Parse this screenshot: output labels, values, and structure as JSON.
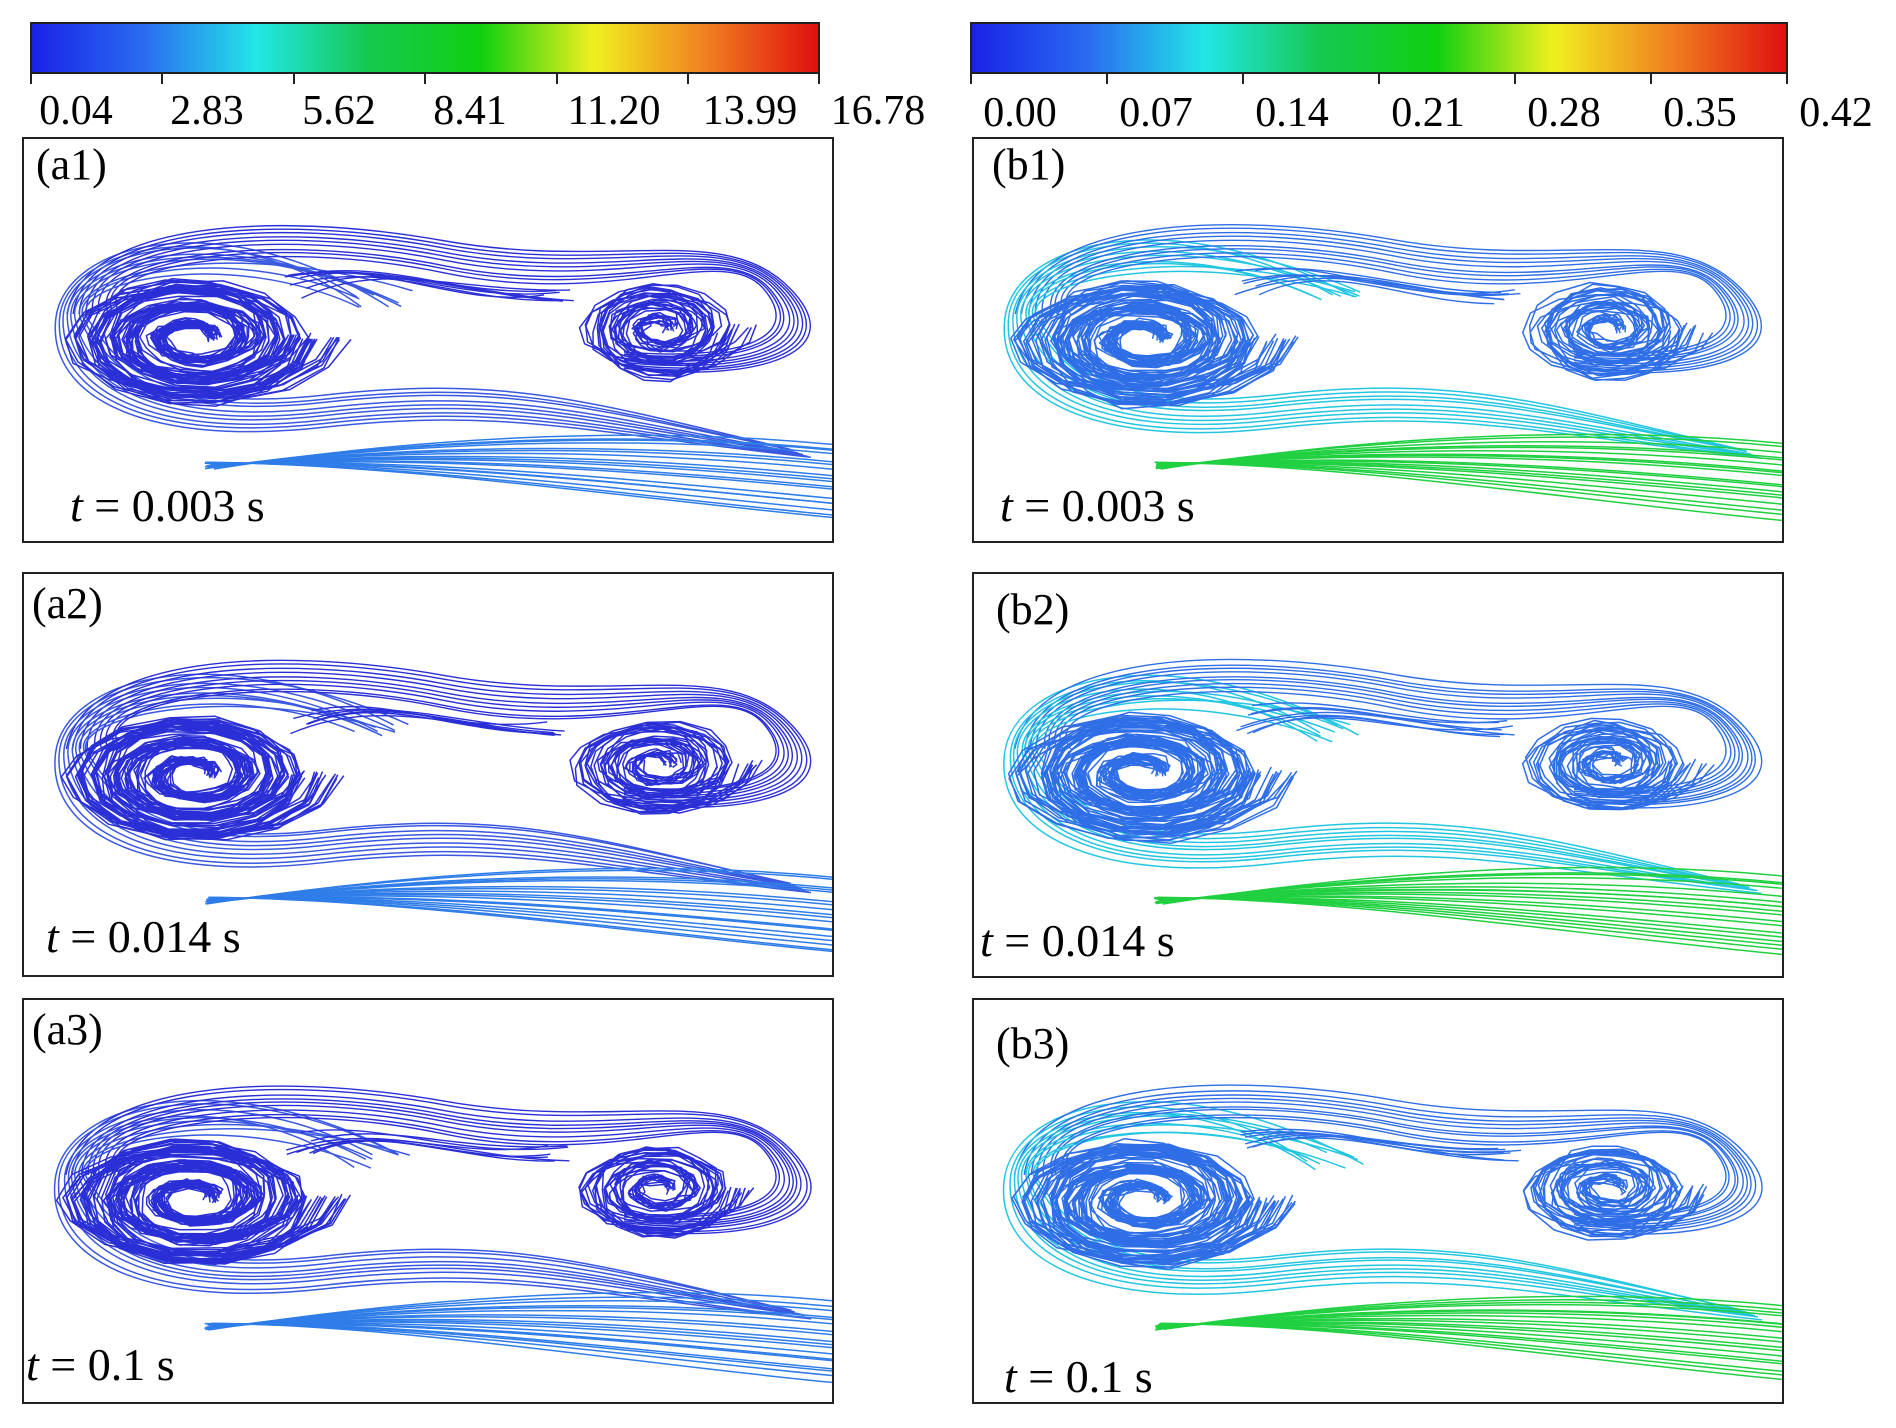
{
  "colorbars": [
    {
      "id": "a",
      "ticks": [
        "0.04",
        "2.83",
        "5.62",
        "8.41",
        "11.20",
        "13.99",
        "16.78"
      ],
      "colors": [
        "#1a22e6",
        "#2a6cf0",
        "#22e6e6",
        "#16c850",
        "#10d010",
        "#f0f020",
        "#f08020",
        "#e01010"
      ]
    },
    {
      "id": "b",
      "ticks": [
        "0.00",
        "0.07",
        "0.14",
        "0.21",
        "0.28",
        "0.35",
        "0.42"
      ],
      "colors": [
        "#1a22e6",
        "#2a6cf0",
        "#22e6e6",
        "#16c850",
        "#10d010",
        "#f0f020",
        "#f08020",
        "#e01010"
      ]
    }
  ],
  "panels": [
    {
      "label": "(a1)",
      "time_var": "t",
      "time_text": " = 0.003 s",
      "vortex_color": "#2b2fd6",
      "outer_color": "#3a58e0",
      "jet_color": "#2f7de8"
    },
    {
      "label": "(a2)",
      "time_var": "t",
      "time_text": " = 0.014 s",
      "vortex_color": "#2b2fd6",
      "outer_color": "#3a58e0",
      "jet_color": "#2f7de8"
    },
    {
      "label": "(a3)",
      "time_var": "t",
      "time_text": " = 0.1 s",
      "vortex_color": "#2b2fd6",
      "outer_color": "#3a58e0",
      "jet_color": "#2f7de8"
    },
    {
      "label": "(b1)",
      "time_var": "t",
      "time_text": " = 0.003 s",
      "vortex_color": "#2f6ee6",
      "outer_color": "#22c6e0",
      "jet_color": "#20d040"
    },
    {
      "label": "(b2)",
      "time_var": "t",
      "time_text": " = 0.014 s",
      "vortex_color": "#2f6ee6",
      "outer_color": "#22c6e0",
      "jet_color": "#20d040"
    },
    {
      "label": "(b3)",
      "time_var": "t",
      "time_text": " = 0.1 s",
      "vortex_color": "#2f6ee6",
      "outer_color": "#22c6e0",
      "jet_color": "#20d040"
    }
  ]
}
